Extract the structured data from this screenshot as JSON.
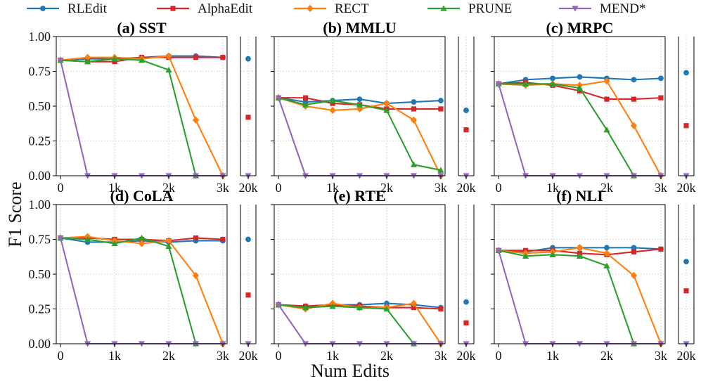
{
  "chart_data": {
    "type": "line",
    "xlabel": "Num Edits",
    "ylabel": "F1 Score",
    "ylim": [
      0,
      1
    ],
    "yticks": [
      "0.00",
      "0.25",
      "0.50",
      "0.75",
      "1.00"
    ],
    "x": [
      0,
      500,
      1000,
      1500,
      2000,
      2500,
      3000
    ],
    "xticks": [
      "0",
      "1k",
      "2k",
      "3k"
    ],
    "extra_x_label": "20k",
    "legend": [
      {
        "name": "RLEdit",
        "color": "#1f77b4",
        "marker": "circle"
      },
      {
        "name": "AlphaEdit",
        "color": "#d62728",
        "marker": "square"
      },
      {
        "name": "RECT",
        "color": "#ff7f0e",
        "marker": "diamond"
      },
      {
        "name": "PRUNE",
        "color": "#2ca02c",
        "marker": "triangle-up"
      },
      {
        "name": "MEND*",
        "color": "#9467bd",
        "marker": "triangle-down"
      }
    ],
    "panels": [
      {
        "title": "(a) SST",
        "series": [
          {
            "name": "RLEdit",
            "values": [
              0.83,
              0.84,
              0.84,
              0.85,
              0.86,
              0.86,
              0.85
            ],
            "at_20k": 0.84
          },
          {
            "name": "AlphaEdit",
            "values": [
              0.83,
              0.82,
              0.82,
              0.85,
              0.85,
              0.85,
              0.85
            ],
            "at_20k": 0.42
          },
          {
            "name": "RECT",
            "values": [
              0.83,
              0.85,
              0.85,
              0.84,
              0.86,
              0.4,
              0.0
            ],
            "at_20k": null
          },
          {
            "name": "PRUNE",
            "values": [
              0.83,
              0.82,
              0.84,
              0.83,
              0.76,
              0.0,
              null
            ],
            "at_20k": null
          },
          {
            "name": "MEND*",
            "values": [
              0.83,
              0.0,
              0.0,
              0.0,
              0.0,
              0.0,
              0.0
            ],
            "at_20k": 0.0
          }
        ]
      },
      {
        "title": "(b) MMLU",
        "series": [
          {
            "name": "RLEdit",
            "values": [
              0.56,
              0.53,
              0.54,
              0.55,
              0.52,
              0.53,
              0.54
            ],
            "at_20k": 0.47
          },
          {
            "name": "AlphaEdit",
            "values": [
              0.56,
              0.56,
              0.52,
              0.51,
              0.48,
              0.48,
              0.48
            ],
            "at_20k": 0.33
          },
          {
            "name": "RECT",
            "values": [
              0.56,
              0.5,
              0.47,
              0.48,
              0.52,
              0.4,
              0.0
            ],
            "at_20k": null
          },
          {
            "name": "PRUNE",
            "values": [
              0.56,
              0.51,
              0.54,
              0.51,
              0.47,
              0.08,
              0.04
            ],
            "at_20k": null
          },
          {
            "name": "MEND*",
            "values": [
              0.56,
              0.0,
              0.0,
              0.0,
              0.0,
              0.0,
              0.0
            ],
            "at_20k": 0.0
          }
        ]
      },
      {
        "title": "(c) MRPC",
        "series": [
          {
            "name": "RLEdit",
            "values": [
              0.66,
              0.69,
              0.7,
              0.71,
              0.7,
              0.69,
              0.7
            ],
            "at_20k": 0.74
          },
          {
            "name": "AlphaEdit",
            "values": [
              0.66,
              0.67,
              0.65,
              0.61,
              0.55,
              0.55,
              0.56
            ],
            "at_20k": 0.36
          },
          {
            "name": "RECT",
            "values": [
              0.66,
              0.65,
              0.66,
              0.65,
              0.68,
              0.36,
              0.0
            ],
            "at_20k": null
          },
          {
            "name": "PRUNE",
            "values": [
              0.66,
              0.66,
              0.66,
              0.63,
              0.33,
              0.0,
              null
            ],
            "at_20k": null
          },
          {
            "name": "MEND*",
            "values": [
              0.66,
              0.0,
              0.0,
              0.0,
              0.0,
              0.0,
              0.0
            ],
            "at_20k": 0.0
          }
        ]
      },
      {
        "title": "(d) CoLA",
        "series": [
          {
            "name": "RLEdit",
            "values": [
              0.76,
              0.73,
              0.73,
              0.74,
              0.73,
              0.74,
              0.74
            ],
            "at_20k": 0.75
          },
          {
            "name": "AlphaEdit",
            "values": [
              0.76,
              0.76,
              0.75,
              0.75,
              0.74,
              0.76,
              0.75
            ],
            "at_20k": 0.35
          },
          {
            "name": "RECT",
            "values": [
              0.76,
              0.77,
              0.74,
              0.72,
              0.74,
              0.49,
              0.0
            ],
            "at_20k": null
          },
          {
            "name": "PRUNE",
            "values": [
              0.76,
              0.75,
              0.72,
              0.76,
              0.7,
              0.0,
              null
            ],
            "at_20k": null
          },
          {
            "name": "MEND*",
            "values": [
              0.76,
              0.0,
              0.0,
              0.0,
              0.0,
              0.0,
              0.0
            ],
            "at_20k": 0.0
          }
        ]
      },
      {
        "title": "(e) RTE",
        "series": [
          {
            "name": "RLEdit",
            "values": [
              0.28,
              0.27,
              0.28,
              0.28,
              0.29,
              0.28,
              0.26
            ],
            "at_20k": 0.3
          },
          {
            "name": "AlphaEdit",
            "values": [
              0.28,
              0.27,
              0.28,
              0.27,
              0.26,
              0.26,
              0.25
            ],
            "at_20k": 0.15
          },
          {
            "name": "RECT",
            "values": [
              0.28,
              0.25,
              0.29,
              0.26,
              0.26,
              0.29,
              0.0
            ],
            "at_20k": null
          },
          {
            "name": "PRUNE",
            "values": [
              0.28,
              0.26,
              0.27,
              0.26,
              0.25,
              0.0,
              null
            ],
            "at_20k": null
          },
          {
            "name": "MEND*",
            "values": [
              0.28,
              0.0,
              0.0,
              0.0,
              0.0,
              0.0,
              0.0
            ],
            "at_20k": 0.0
          }
        ]
      },
      {
        "title": "(f) NLI",
        "series": [
          {
            "name": "RLEdit",
            "values": [
              0.67,
              0.66,
              0.69,
              0.69,
              0.69,
              0.69,
              0.68
            ],
            "at_20k": 0.59
          },
          {
            "name": "AlphaEdit",
            "values": [
              0.67,
              0.67,
              0.67,
              0.65,
              0.64,
              0.66,
              0.68
            ],
            "at_20k": 0.38
          },
          {
            "name": "RECT",
            "values": [
              0.67,
              0.65,
              0.66,
              0.69,
              0.65,
              0.49,
              0.0
            ],
            "at_20k": null
          },
          {
            "name": "PRUNE",
            "values": [
              0.67,
              0.63,
              0.64,
              0.63,
              0.56,
              0.0,
              null
            ],
            "at_20k": null
          },
          {
            "name": "MEND*",
            "values": [
              0.67,
              0.0,
              0.0,
              0.0,
              0.0,
              0.0,
              0.0
            ],
            "at_20k": 0.0
          }
        ]
      }
    ]
  }
}
